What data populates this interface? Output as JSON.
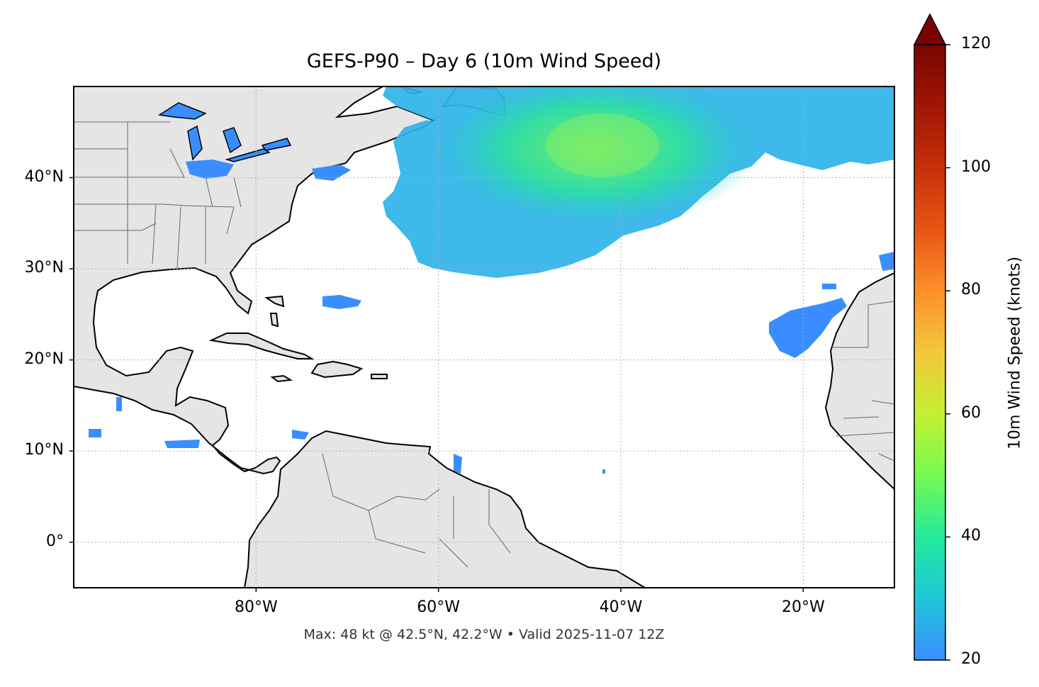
{
  "map": {
    "title": "GEFS-P90 – Day 6 (10m Wind Speed)",
    "footer": "Max: 48 kt @ 42.5°N, 42.2°W • Valid 2025-11-07 12Z",
    "extent": {
      "lon_min": -100,
      "lon_max": -10,
      "lat_min": -5,
      "lat_max": 50
    },
    "lat_ticks": [
      {
        "value": 40,
        "label": "40°N"
      },
      {
        "value": 30,
        "label": "30°N"
      },
      {
        "value": 20,
        "label": "20°N"
      },
      {
        "value": 10,
        "label": "10°N"
      },
      {
        "value": 0,
        "label": "0°"
      }
    ],
    "lon_ticks": [
      {
        "value": -80,
        "label": "80°W"
      },
      {
        "value": -60,
        "label": "60°W"
      },
      {
        "value": -40,
        "label": "40°W"
      },
      {
        "value": -20,
        "label": "20°W"
      }
    ],
    "land_color": "#e5e5e5",
    "max_point": {
      "lat": 42.5,
      "lon": -42.2,
      "value_kt": 48
    }
  },
  "colorbar": {
    "label": "10m Wind Speed (knots)",
    "min": 20,
    "max": 120,
    "extend": "max",
    "ticks": [
      20,
      40,
      60,
      80,
      100,
      120
    ],
    "colormap": "turbo"
  }
}
